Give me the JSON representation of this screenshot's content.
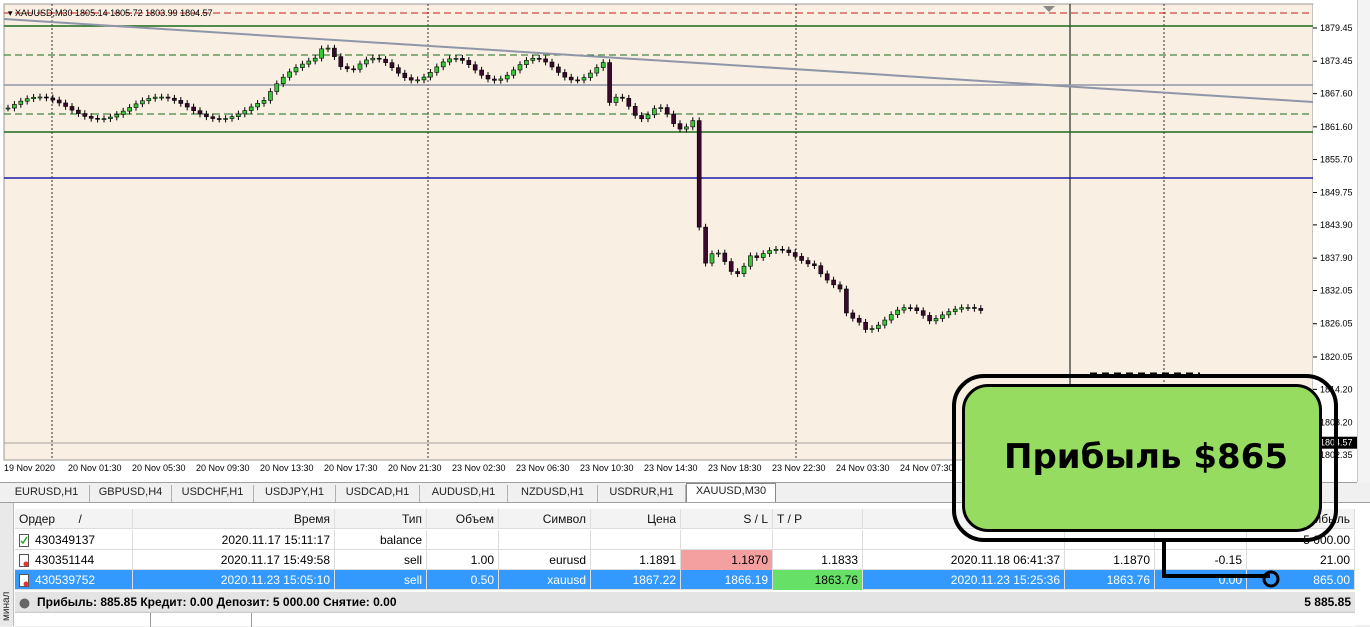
{
  "chart": {
    "header": "XAUUSD,M30  1805.14 1805.72 1803.99 1804.57",
    "symbol": "XAUUSD,M30",
    "ohlc": "1805.14 1805.72 1803.99 1804.57",
    "price_labels": [
      "1879.45",
      "1873.45",
      "1867.60",
      "1861.60",
      "1855.70",
      "1849.75",
      "1843.90",
      "1837.90",
      "1832.05",
      "1826.05",
      "1820.05",
      "1814.20",
      "1808.20",
      "1802.35"
    ],
    "current_price": "1804.57",
    "time_labels": [
      "19 Nov 2020",
      "20 Nov 01:30",
      "20 Nov 05:30",
      "20 Nov 09:30",
      "20 Nov 13:30",
      "20 Nov 17:30",
      "20 Nov 21:30",
      "23 Nov 02:30",
      "23 Nov 06:30",
      "23 Nov 10:30",
      "23 Nov 14:30",
      "23 Nov 18:30",
      "23 Nov 22:30",
      "24 Nov 03:30",
      "24 Nov 07:30"
    ],
    "colors": {
      "bull": "#37c837",
      "bear": "#3a0a2e",
      "background": "#f9efe3",
      "sell_line": "#1a1aa8",
      "level_line": "#1a6b1a",
      "trend_line": "#8f96a8",
      "stop_line": "#c81e1e"
    }
  },
  "tabs": [
    "EURUSD,H1",
    "GBPUSD,H4",
    "USDCHF,H1",
    "USDJPY,H1",
    "USDCAD,H1",
    "AUDUSD,H1",
    "NZDUSD,H1",
    "USDRUR,H1",
    "XAUUSD,M30"
  ],
  "active_tab": "XAUUSD,M30",
  "terminal": {
    "side_label": "минал",
    "headers": {
      "order": "Ордер",
      "sort": "/",
      "time": "Время",
      "type": "Тип",
      "volume": "Объем",
      "symbol": "Символ",
      "price": "Цена",
      "sl": "S / L",
      "tp": "T / P",
      "profit": "рибыль"
    },
    "rows": [
      {
        "order": "430349137",
        "time": "2020.11.17 15:11:17",
        "type": "balance",
        "volume": "",
        "symbol": "",
        "price": "",
        "sl": "",
        "tp": "",
        "close_time": "",
        "close_price": "",
        "swap": "",
        "profit": "5 000.00"
      },
      {
        "order": "430351144",
        "time": "2020.11.17 15:49:58",
        "type": "sell",
        "volume": "1.00",
        "symbol": "eurusd",
        "price": "1.1891",
        "sl": "1.1870",
        "tp": "1.1833",
        "close_time": "2020.11.18 06:41:37",
        "close_price": "1.1870",
        "swap": "-0.15",
        "profit": "21.00"
      },
      {
        "order": "430539752",
        "time": "2020.11.23 15:05:10",
        "type": "sell",
        "volume": "0.50",
        "symbol": "xauusd",
        "price": "1867.22",
        "sl": "1866.19",
        "tp": "1863.76",
        "close_time": "2020.11.23 15:25:36",
        "close_price": "1863.76",
        "swap": "0.00",
        "profit": "865.00"
      }
    ],
    "summary": {
      "label": "Прибыль: 885.85  Кредит: 0.00  Депозит: 5 000.00  Снятие: 0.00",
      "total": "5 885.85"
    },
    "colors": {
      "sl_hit": "#f4a0a0",
      "tp_hit": "#66e066",
      "selected": "#3399ff"
    }
  },
  "callout": {
    "text": "Прибыль $865",
    "color": "#96dc60"
  }
}
